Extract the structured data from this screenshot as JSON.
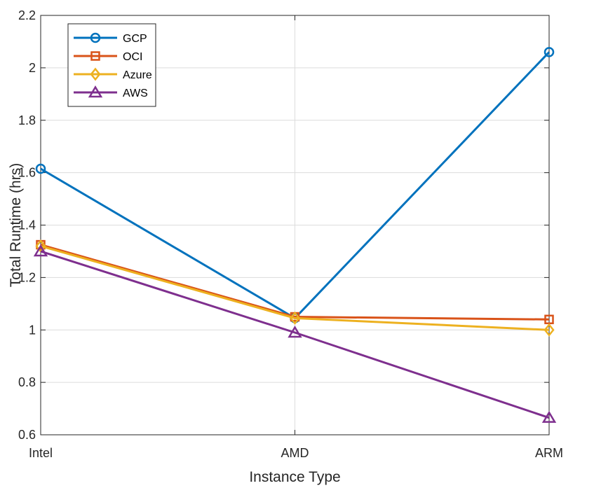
{
  "chart_data": {
    "type": "line",
    "title": "",
    "xlabel": "Instance Type",
    "ylabel": "Total Runtime (hrs)",
    "categories": [
      "Intel",
      "AMD",
      "ARM"
    ],
    "ylim": [
      0.6,
      2.2
    ],
    "yticks": [
      "0.6",
      "0.8",
      "1",
      "1.2",
      "1.4",
      "1.6",
      "1.8",
      "2",
      "2.2"
    ],
    "grid": true,
    "legend_position": "top-left",
    "series": [
      {
        "name": "GCP",
        "color": "#0072BD",
        "marker": "circle",
        "values": [
          1.615,
          1.045,
          2.06
        ]
      },
      {
        "name": "OCI",
        "color": "#D95319",
        "marker": "square",
        "values": [
          1.325,
          1.05,
          1.04
        ]
      },
      {
        "name": "Azure",
        "color": "#EDB120",
        "marker": "diamond",
        "values": [
          1.32,
          1.045,
          1.0
        ]
      },
      {
        "name": "AWS",
        "color": "#7E2F8E",
        "marker": "triangle",
        "values": [
          1.3,
          0.99,
          0.665
        ]
      }
    ]
  }
}
